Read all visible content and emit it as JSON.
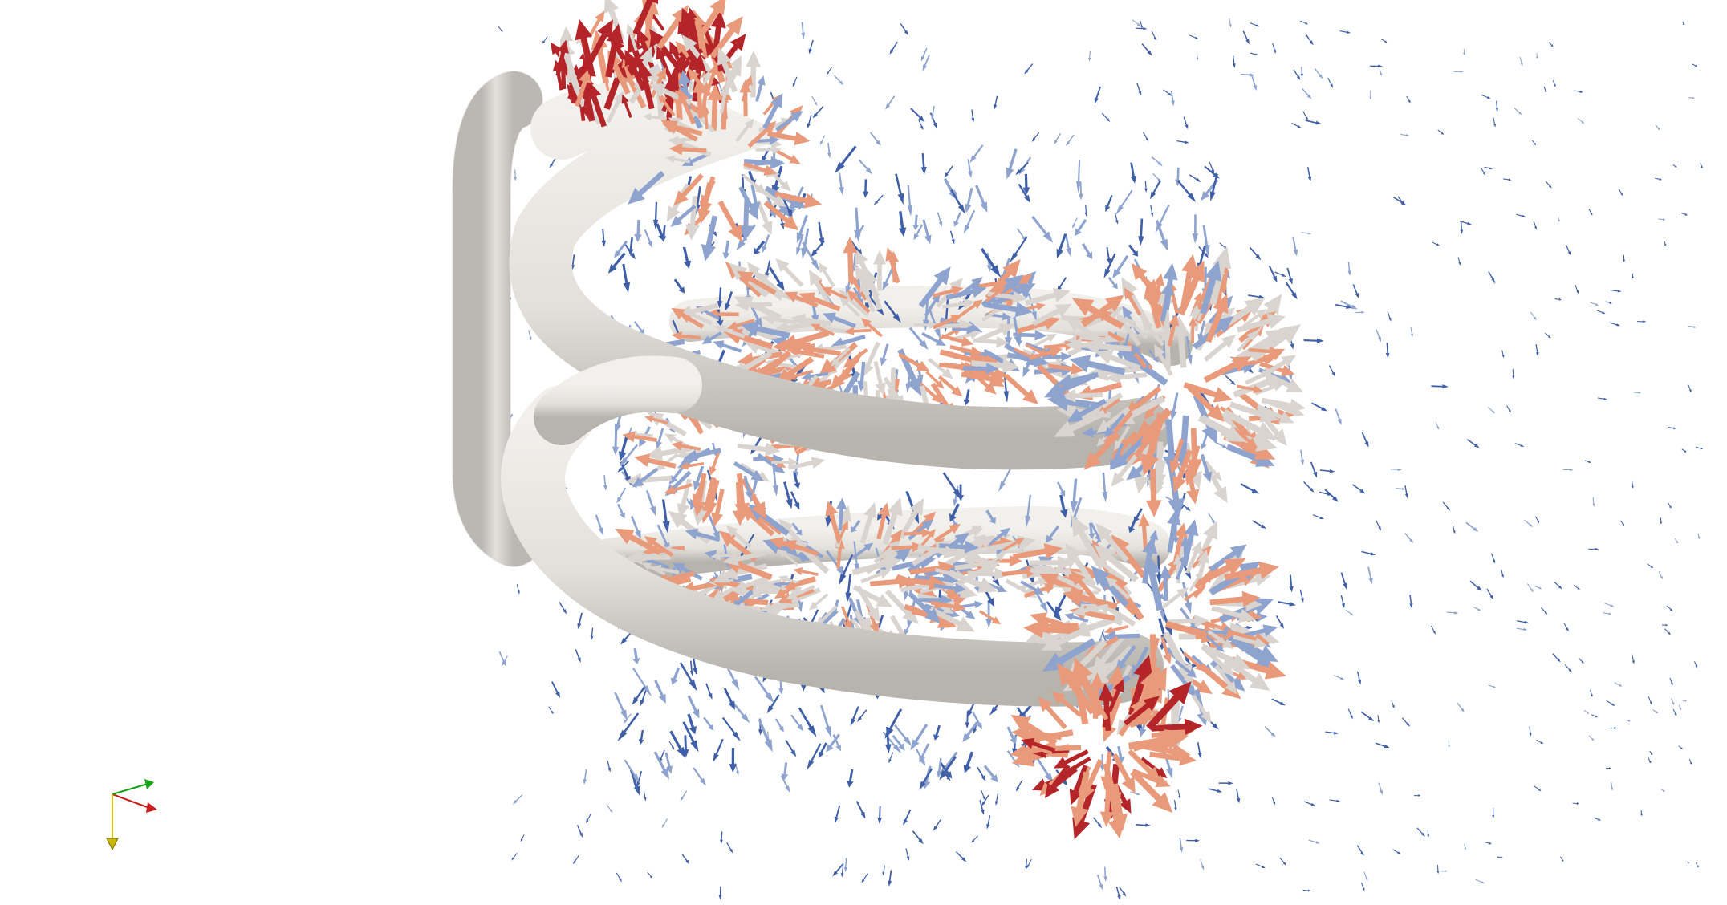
{
  "scene": {
    "background": "#ffffff",
    "coil_color": "#e6e4df",
    "glyph_colors": {
      "low": "#3f5fa8",
      "mid_low": "#8ea4cf",
      "mid": "#d9d4cf",
      "mid_high": "#e99a7a",
      "high": "#b4252a"
    }
  },
  "axes_triad": {
    "x_color": "#c81e1e",
    "y_color": "#16a316",
    "z_color": "#d6c800"
  }
}
